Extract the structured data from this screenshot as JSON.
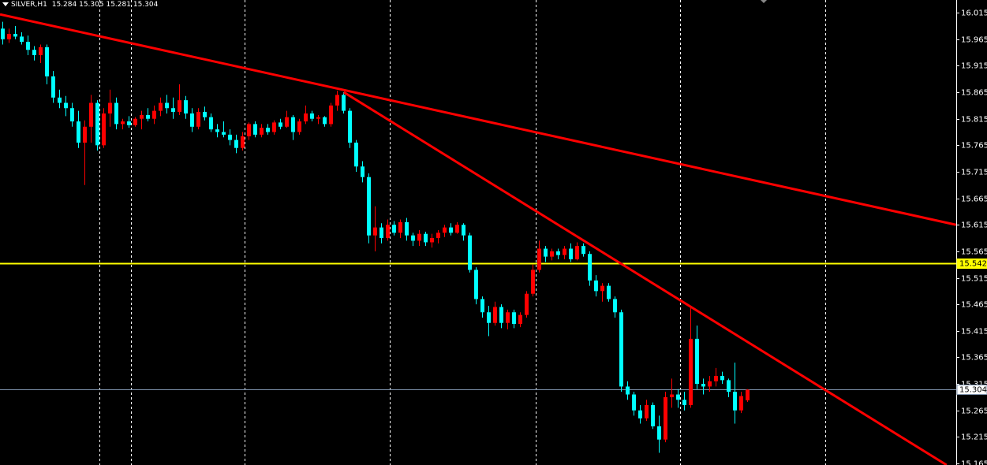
{
  "chart_data": {
    "type": "candlestick",
    "title": "SILVER,H1",
    "header_ohlc": [
      15.284,
      15.305,
      15.281,
      15.304
    ],
    "up_color": "#ff0000",
    "down_color": "#00ffff",
    "xlim": [
      -0.375,
      151.125
    ],
    "xgrid": [
      15.4,
      20.4,
      38.4,
      61.4,
      84.5,
      107.4,
      130.4
    ],
    "ylim": [
      15.162,
      16.039
    ],
    "yticks": [
      16.015,
      15.965,
      15.915,
      15.865,
      15.815,
      15.765,
      15.715,
      15.665,
      15.615,
      15.565,
      15.515,
      15.465,
      15.415,
      15.365,
      15.315,
      15.265,
      15.215,
      15.165
    ],
    "levels": [
      {
        "value": 15.542,
        "color": "#ffff00"
      },
      {
        "value": 15.304,
        "color": "#7f93ad"
      }
    ],
    "trendlines": [
      {
        "color": "#ff0000",
        "x": [
          -0.375,
          151.1
        ],
        "y": [
          16.012,
          15.615
        ]
      },
      {
        "color": "#ff0000",
        "x": [
          54.1,
          149.6
        ],
        "y": [
          15.865,
          15.162
        ]
      }
    ],
    "ohlc": [
      [
        15.985,
        15.998,
        15.955,
        15.965
      ],
      [
        15.965,
        15.985,
        15.958,
        15.975
      ],
      [
        15.975,
        15.99,
        15.965,
        15.97
      ],
      [
        15.97,
        15.978,
        15.955,
        15.96
      ],
      [
        15.96,
        15.972,
        15.935,
        15.945
      ],
      [
        15.945,
        15.952,
        15.925,
        15.935
      ],
      [
        15.935,
        15.955,
        15.92,
        15.95
      ],
      [
        15.95,
        15.955,
        15.88,
        15.895
      ],
      [
        15.895,
        15.905,
        15.845,
        15.855
      ],
      [
        15.855,
        15.87,
        15.835,
        15.845
      ],
      [
        15.845,
        15.858,
        15.82,
        15.835
      ],
      [
        15.835,
        15.845,
        15.8,
        15.81
      ],
      [
        15.81,
        15.83,
        15.76,
        15.77
      ],
      [
        15.77,
        15.812,
        15.69,
        15.8
      ],
      [
        15.8,
        15.86,
        15.77,
        15.845
      ],
      [
        15.845,
        15.85,
        15.755,
        15.765
      ],
      [
        15.765,
        15.835,
        15.76,
        15.825
      ],
      [
        15.825,
        15.87,
        15.8,
        15.845
      ],
      [
        15.845,
        15.855,
        15.795,
        15.805
      ],
      [
        15.805,
        15.815,
        15.795,
        15.81
      ],
      [
        15.81,
        15.82,
        15.798,
        15.803
      ],
      [
        15.803,
        15.818,
        15.8,
        15.815
      ],
      [
        15.815,
        15.83,
        15.795,
        15.822
      ],
      [
        15.822,
        15.835,
        15.81,
        15.815
      ],
      [
        15.815,
        15.84,
        15.805,
        15.83
      ],
      [
        15.83,
        15.855,
        15.82,
        15.845
      ],
      [
        15.845,
        15.86,
        15.825,
        15.835
      ],
      [
        15.835,
        15.855,
        15.815,
        15.828
      ],
      [
        15.828,
        15.88,
        15.822,
        15.85
      ],
      [
        15.85,
        15.858,
        15.815,
        15.825
      ],
      [
        15.825,
        15.835,
        15.79,
        15.8
      ],
      [
        15.8,
        15.835,
        15.795,
        15.828
      ],
      [
        15.828,
        15.838,
        15.812,
        15.818
      ],
      [
        15.818,
        15.825,
        15.79,
        15.795
      ],
      [
        15.795,
        15.805,
        15.78,
        15.79
      ],
      [
        15.79,
        15.81,
        15.78,
        15.785
      ],
      [
        15.785,
        15.795,
        15.765,
        15.775
      ],
      [
        15.775,
        15.785,
        15.75,
        15.76
      ],
      [
        15.76,
        15.79,
        15.755,
        15.782
      ],
      [
        15.782,
        15.808,
        15.775,
        15.805
      ],
      [
        15.805,
        15.81,
        15.78,
        15.785
      ],
      [
        15.785,
        15.805,
        15.78,
        15.798
      ],
      [
        15.798,
        15.805,
        15.785,
        15.79
      ],
      [
        15.79,
        15.812,
        15.785,
        15.808
      ],
      [
        15.808,
        15.815,
        15.795,
        15.8
      ],
      [
        15.8,
        15.83,
        15.798,
        15.818
      ],
      [
        15.818,
        15.822,
        15.775,
        15.79
      ],
      [
        15.79,
        15.815,
        15.785,
        15.81
      ],
      [
        15.81,
        15.84,
        15.805,
        15.825
      ],
      [
        15.825,
        15.83,
        15.81,
        15.815
      ],
      [
        15.815,
        15.822,
        15.805,
        15.818
      ],
      [
        15.818,
        15.82,
        15.8,
        15.805
      ],
      [
        15.805,
        15.845,
        15.8,
        15.84
      ],
      [
        15.84,
        15.868,
        15.83,
        15.86
      ],
      [
        15.86,
        15.865,
        15.825,
        15.83
      ],
      [
        15.83,
        15.835,
        15.76,
        15.77
      ],
      [
        15.77,
        15.775,
        15.715,
        15.725
      ],
      [
        15.725,
        15.735,
        15.695,
        15.705
      ],
      [
        15.705,
        15.712,
        15.58,
        15.595
      ],
      [
        15.595,
        15.65,
        15.565,
        15.61
      ],
      [
        15.61,
        15.618,
        15.58,
        15.59
      ],
      [
        15.59,
        15.625,
        15.585,
        15.615
      ],
      [
        15.615,
        15.622,
        15.595,
        15.6
      ],
      [
        15.6,
        15.625,
        15.59,
        15.62
      ],
      [
        15.62,
        15.628,
        15.585,
        15.595
      ],
      [
        15.595,
        15.6,
        15.575,
        15.585
      ],
      [
        15.585,
        15.605,
        15.575,
        15.598
      ],
      [
        15.598,
        15.602,
        15.575,
        15.582
      ],
      [
        15.582,
        15.598,
        15.572,
        15.59
      ],
      [
        15.59,
        15.605,
        15.58,
        15.6
      ],
      [
        15.6,
        15.615,
        15.592,
        15.61
      ],
      [
        15.61,
        15.618,
        15.595,
        15.6
      ],
      [
        15.6,
        15.62,
        15.598,
        15.615
      ],
      [
        15.615,
        15.618,
        15.585,
        15.595
      ],
      [
        15.595,
        15.6,
        15.525,
        15.53
      ],
      [
        15.53,
        15.535,
        15.465,
        15.475
      ],
      [
        15.475,
        15.48,
        15.44,
        15.45
      ],
      [
        15.45,
        15.462,
        15.405,
        15.43
      ],
      [
        15.43,
        15.47,
        15.425,
        15.46
      ],
      [
        15.46,
        15.465,
        15.42,
        15.43
      ],
      [
        15.43,
        15.455,
        15.418,
        15.45
      ],
      [
        15.45,
        15.455,
        15.42,
        15.428
      ],
      [
        15.428,
        15.45,
        15.422,
        15.445
      ],
      [
        15.445,
        15.49,
        15.44,
        15.485
      ],
      [
        15.485,
        15.54,
        15.48,
        15.53
      ],
      [
        15.53,
        15.585,
        15.525,
        15.57
      ],
      [
        15.57,
        15.575,
        15.545,
        15.555
      ],
      [
        15.555,
        15.57,
        15.548,
        15.565
      ],
      [
        15.565,
        15.57,
        15.55,
        15.558
      ],
      [
        15.558,
        15.575,
        15.55,
        15.57
      ],
      [
        15.57,
        15.58,
        15.545,
        15.55
      ],
      [
        15.55,
        15.582,
        15.548,
        15.575
      ],
      [
        15.575,
        15.58,
        15.555,
        15.56
      ],
      [
        15.56,
        15.565,
        15.5,
        15.51
      ],
      [
        15.51,
        15.52,
        15.48,
        15.49
      ],
      [
        15.49,
        15.505,
        15.47,
        15.5
      ],
      [
        15.5,
        15.505,
        15.47,
        15.475
      ],
      [
        15.475,
        15.48,
        15.44,
        15.45
      ],
      [
        15.45,
        15.455,
        15.3,
        15.31
      ],
      [
        15.31,
        15.32,
        15.285,
        15.295
      ],
      [
        15.295,
        15.3,
        15.255,
        15.265
      ],
      [
        15.265,
        15.275,
        15.24,
        15.25
      ],
      [
        15.25,
        15.285,
        15.245,
        15.275
      ],
      [
        15.275,
        15.28,
        15.23,
        15.235
      ],
      [
        15.235,
        15.255,
        15.185,
        15.21
      ],
      [
        15.21,
        15.3,
        15.205,
        15.29
      ],
      [
        15.29,
        15.325,
        15.27,
        15.295
      ],
      [
        15.295,
        15.305,
        15.27,
        15.285
      ],
      [
        15.285,
        15.3,
        15.265,
        15.275
      ],
      [
        15.275,
        15.46,
        15.27,
        15.4
      ],
      [
        15.4,
        15.425,
        15.305,
        15.315
      ],
      [
        15.315,
        15.325,
        15.295,
        15.31
      ],
      [
        15.31,
        15.33,
        15.3,
        15.32
      ],
      [
        15.32,
        15.345,
        15.31,
        15.33
      ],
      [
        15.33,
        15.338,
        15.315,
        15.322
      ],
      [
        15.322,
        15.325,
        15.29,
        15.3
      ],
      [
        15.3,
        15.355,
        15.24,
        15.265
      ],
      [
        15.265,
        15.3,
        15.26,
        15.292
      ],
      [
        15.284,
        15.305,
        15.281,
        15.304
      ]
    ]
  }
}
